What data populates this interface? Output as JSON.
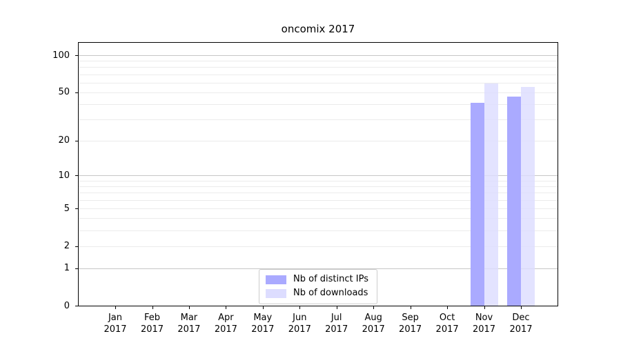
{
  "chart_data": {
    "type": "bar",
    "title": "oncomix 2017",
    "x": [
      "Jan",
      "Feb",
      "Mar",
      "Apr",
      "May",
      "Jun",
      "Jul",
      "Aug",
      "Sep",
      "Oct",
      "Nov",
      "Dec"
    ],
    "x_year": "2017",
    "series": [
      {
        "name": "Nb of distinct IPs",
        "color": "#aaaaff",
        "values": [
          0,
          0,
          0,
          0,
          0,
          0,
          0,
          0,
          0,
          0,
          41,
          46
        ]
      },
      {
        "name": "Nb of downloads",
        "color": "#ddddff",
        "values": [
          0,
          0,
          0,
          0,
          0,
          0,
          0,
          0,
          0,
          0,
          59,
          55
        ]
      }
    ],
    "yscale": "log10(1+y)",
    "ylim": [
      0,
      126
    ],
    "y_tick_values": [
      0,
      1,
      2,
      5,
      10,
      20,
      50,
      100
    ],
    "y_major_gridlines": [
      1,
      10,
      100
    ],
    "y_minor_gridlines": [
      2,
      3,
      4,
      5,
      6,
      7,
      8,
      9,
      20,
      30,
      40,
      50,
      60,
      70,
      80,
      90
    ],
    "legend_position": "lower center",
    "grid_on": true,
    "colors": {
      "major_grid": "#c6c6c6",
      "minor_grid": "#ebebeb",
      "spine": "#000000",
      "background": "#ffffff"
    }
  }
}
